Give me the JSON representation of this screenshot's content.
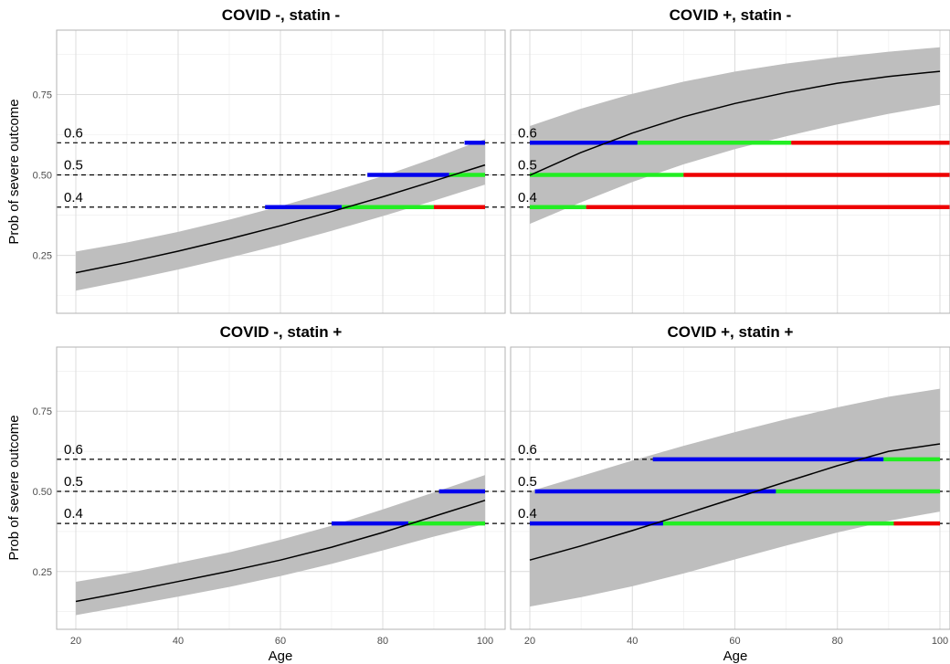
{
  "chart_data": {
    "type": "line",
    "xlabel": "Age",
    "ylabel": "Prob of severe outcome",
    "xlim": [
      16,
      102
    ],
    "ylim": [
      0.07,
      0.95
    ],
    "x_ticks": [
      20,
      40,
      60,
      80,
      100
    ],
    "y_ticks": [
      0.25,
      0.5,
      0.75
    ],
    "grid": true,
    "colors": {
      "band": "#bebebe",
      "line": "#000000",
      "reference": "#000000",
      "segments": [
        "#0000ee",
        "#22ee22",
        "#ee0000"
      ]
    },
    "segment_legend_note": "",
    "panels": [
      {
        "title": "COVID -, statin -",
        "x": [
          20,
          30,
          40,
          50,
          60,
          70,
          80,
          90,
          100
        ],
        "y": [
          0.196,
          0.228,
          0.263,
          0.301,
          0.342,
          0.386,
          0.432,
          0.481,
          0.531
        ],
        "lower": [
          0.14,
          0.172,
          0.206,
          0.243,
          0.283,
          0.326,
          0.372,
          0.42,
          0.47
        ],
        "upper": [
          0.262,
          0.29,
          0.323,
          0.361,
          0.403,
          0.448,
          0.496,
          0.552,
          0.612
        ],
        "thresholds": [
          {
            "label": "0.6",
            "value": 0.6,
            "segments": [
              [
                96,
                100,
                0
              ]
            ]
          },
          {
            "label": "0.5",
            "value": 0.5,
            "segments": [
              [
                77,
                93,
                0
              ],
              [
                93,
                100,
                1
              ]
            ]
          },
          {
            "label": "0.4",
            "value": 0.4,
            "segments": [
              [
                57,
                72,
                0
              ],
              [
                72,
                90,
                1
              ],
              [
                90,
                100,
                2
              ]
            ]
          }
        ]
      },
      {
        "title": "COVID +, statin -",
        "x": [
          20,
          30,
          40,
          50,
          60,
          70,
          80,
          90,
          100
        ],
        "y": [
          0.499,
          0.57,
          0.63,
          0.681,
          0.722,
          0.756,
          0.785,
          0.806,
          0.822
        ],
        "lower": [
          0.348,
          0.415,
          0.478,
          0.533,
          0.58,
          0.62,
          0.657,
          0.69,
          0.718
        ],
        "upper": [
          0.652,
          0.706,
          0.752,
          0.79,
          0.821,
          0.846,
          0.866,
          0.883,
          0.897
        ],
        "thresholds": [
          {
            "label": "0.6",
            "value": 0.6,
            "segments": [
              [
                20,
                41,
                0
              ],
              [
                41,
                71,
                1
              ],
              [
                71,
                102,
                2
              ]
            ]
          },
          {
            "label": "0.5",
            "value": 0.5,
            "segments": [
              [
                20,
                50,
                1
              ],
              [
                50,
                102,
                2
              ]
            ]
          },
          {
            "label": "0.4",
            "value": 0.4,
            "segments": [
              [
                20,
                31,
                1
              ],
              [
                31,
                102,
                2
              ]
            ]
          }
        ]
      },
      {
        "title": "COVID -, statin +",
        "x": [
          20,
          30,
          40,
          50,
          60,
          70,
          80,
          90,
          100
        ],
        "y": [
          0.157,
          0.187,
          0.219,
          0.251,
          0.286,
          0.326,
          0.372,
          0.422,
          0.472
        ],
        "lower": [
          0.114,
          0.143,
          0.172,
          0.202,
          0.236,
          0.274,
          0.316,
          0.359,
          0.398
        ],
        "upper": [
          0.218,
          0.245,
          0.277,
          0.31,
          0.349,
          0.393,
          0.444,
          0.497,
          0.551
        ],
        "thresholds": [
          {
            "label": "0.6",
            "value": 0.6,
            "segments": []
          },
          {
            "label": "0.5",
            "value": 0.5,
            "segments": [
              [
                91,
                100,
                0
              ]
            ]
          },
          {
            "label": "0.4",
            "value": 0.4,
            "segments": [
              [
                70,
                85,
                0
              ],
              [
                85,
                100,
                1
              ]
            ]
          }
        ]
      },
      {
        "title": "COVID +, statin +",
        "x": [
          20,
          30,
          40,
          50,
          60,
          70,
          80,
          90,
          100
        ],
        "y": [
          0.286,
          0.33,
          0.378,
          0.428,
          0.479,
          0.53,
          0.58,
          0.625,
          0.648
        ],
        "lower": [
          0.141,
          0.17,
          0.204,
          0.244,
          0.288,
          0.331,
          0.372,
          0.408,
          0.437
        ],
        "upper": [
          0.5,
          0.548,
          0.596,
          0.642,
          0.685,
          0.725,
          0.762,
          0.795,
          0.82
        ],
        "thresholds": [
          {
            "label": "0.6",
            "value": 0.6,
            "segments": [
              [
                44,
                89,
                0
              ],
              [
                89,
                100,
                1
              ]
            ]
          },
          {
            "label": "0.5",
            "value": 0.5,
            "segments": [
              [
                21,
                68,
                0
              ],
              [
                68,
                100,
                1
              ]
            ]
          },
          {
            "label": "0.4",
            "value": 0.4,
            "segments": [
              [
                20,
                46,
                0
              ],
              [
                46,
                91,
                1
              ],
              [
                91,
                100,
                2
              ]
            ]
          }
        ]
      }
    ]
  }
}
